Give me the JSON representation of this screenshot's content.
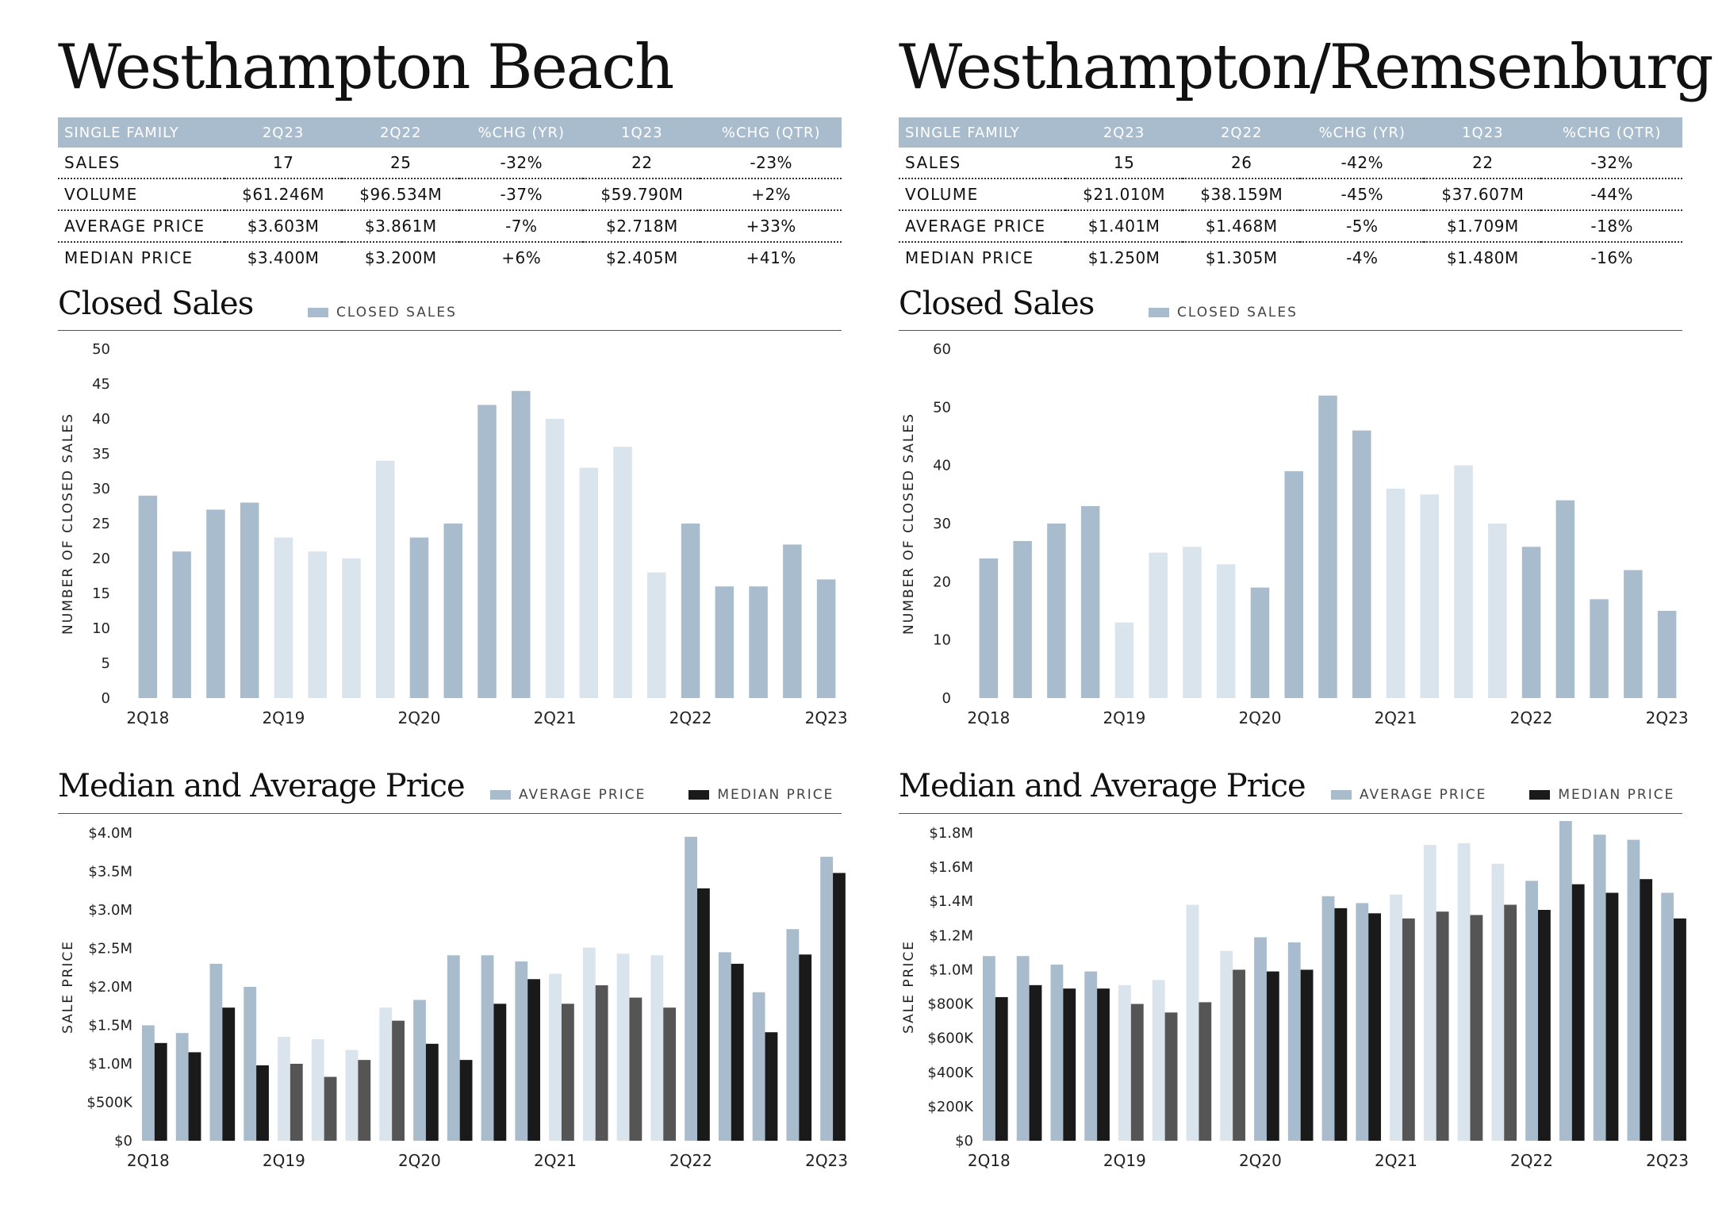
{
  "colors": {
    "header_bg": "#a9bccd",
    "bar_dark": "#a9bccd",
    "bar_light": "#dae4ec",
    "median_black": "#1a1a1a",
    "median_gray": "#555555"
  },
  "panels": [
    {
      "id": "westhampton-beach",
      "title": "Westhampton Beach",
      "table": {
        "headers": [
          "SINGLE FAMILY",
          "2Q23",
          "2Q22",
          "%CHG (YR)",
          "1Q23",
          "%CHG (QTR)"
        ],
        "rows": [
          [
            "SALES",
            "17",
            "25",
            "-32%",
            "22",
            "-23%"
          ],
          [
            "VOLUME",
            "$61.246M",
            "$96.534M",
            "-37%",
            "$59.790M",
            "+2%"
          ],
          [
            "AVERAGE PRICE",
            "$3.603M",
            "$3.861M",
            "-7%",
            "$2.718M",
            "+33%"
          ],
          [
            "MEDIAN PRICE",
            "$3.400M",
            "$3.200M",
            "+6%",
            "$2.405M",
            "+41%"
          ]
        ]
      },
      "closed_sales": {
        "title": "Closed Sales",
        "legend": "CLOSED SALES",
        "chart_data": {
          "type": "bar",
          "ylabel": "NUMBER OF CLOSED SALES",
          "ylim": [
            0,
            50
          ],
          "yticks": [
            "0",
            "5",
            "10",
            "15",
            "20",
            "25",
            "30",
            "35",
            "40",
            "45",
            "50"
          ],
          "x_labels": [
            "2Q18",
            "2Q19",
            "2Q20",
            "2Q21",
            "2Q22",
            "2Q23"
          ],
          "values": [
            29,
            21,
            27,
            28,
            23,
            21,
            20,
            34,
            23,
            25,
            42,
            44,
            40,
            33,
            36,
            18,
            25,
            16,
            16,
            22,
            17
          ]
        }
      },
      "price": {
        "title": "Median and Average Price",
        "legend_avg": "AVERAGE PRICE",
        "legend_median": "MEDIAN PRICE",
        "chart_data": {
          "type": "bar",
          "ylabel": "SALE PRICE",
          "ylim": [
            0,
            4000000
          ],
          "yticks": [
            "$0",
            "$500K",
            "$1.0M",
            "$1.5M",
            "$2.0M",
            "$2.5M",
            "$3.0M",
            "$3.5M",
            "$4.0M"
          ],
          "x_labels": [
            "2Q18",
            "2Q19",
            "2Q20",
            "2Q21",
            "2Q22",
            "2Q23"
          ],
          "series": [
            {
              "name": "AVERAGE PRICE",
              "values": [
                1.5,
                1.4,
                2.3,
                2.0,
                1.35,
                1.32,
                1.18,
                1.73,
                1.83,
                2.41,
                2.41,
                2.33,
                2.17,
                2.51,
                2.43,
                2.41,
                3.95,
                2.45,
                1.93,
                2.75,
                3.69
              ]
            },
            {
              "name": "MEDIAN PRICE",
              "values": [
                1.27,
                1.15,
                1.73,
                0.98,
                1.0,
                0.83,
                1.05,
                1.56,
                1.26,
                1.05,
                1.78,
                2.1,
                1.78,
                2.02,
                1.86,
                1.73,
                3.28,
                2.3,
                1.41,
                2.42,
                3.48
              ]
            }
          ],
          "unit": "millions USD"
        }
      }
    },
    {
      "id": "westhampton-remsenburg",
      "title": "Westhampton/Remsenburg",
      "table": {
        "headers": [
          "SINGLE FAMILY",
          "2Q23",
          "2Q22",
          "%CHG (YR)",
          "1Q23",
          "%CHG (QTR)"
        ],
        "rows": [
          [
            "SALES",
            "15",
            "26",
            "-42%",
            "22",
            "-32%"
          ],
          [
            "VOLUME",
            "$21.010M",
            "$38.159M",
            "-45%",
            "$37.607M",
            "-44%"
          ],
          [
            "AVERAGE PRICE",
            "$1.401M",
            "$1.468M",
            "-5%",
            "$1.709M",
            "-18%"
          ],
          [
            "MEDIAN PRICE",
            "$1.250M",
            "$1.305M",
            "-4%",
            "$1.480M",
            "-16%"
          ]
        ]
      },
      "closed_sales": {
        "title": "Closed Sales",
        "legend": "CLOSED SALES",
        "chart_data": {
          "type": "bar",
          "ylabel": "NUMBER OF CLOSED SALES",
          "ylim": [
            0,
            60
          ],
          "yticks": [
            "0",
            "10",
            "20",
            "30",
            "40",
            "50",
            "60"
          ],
          "x_labels": [
            "2Q18",
            "2Q19",
            "2Q20",
            "2Q21",
            "2Q22",
            "2Q23"
          ],
          "values": [
            24,
            27,
            30,
            33,
            13,
            25,
            26,
            23,
            19,
            39,
            52,
            46,
            36,
            35,
            40,
            30,
            26,
            34,
            17,
            22,
            15
          ]
        }
      },
      "price": {
        "title": "Median and Average Price",
        "legend_avg": "AVERAGE PRICE",
        "legend_median": "MEDIAN PRICE",
        "chart_data": {
          "type": "bar",
          "ylabel": "SALE PRICE",
          "ylim": [
            0,
            1800000
          ],
          "yticks": [
            "$0",
            "$200K",
            "$400K",
            "$600K",
            "$800K",
            "$1.0M",
            "$1.2M",
            "$1.4M",
            "$1.6M",
            "$1.8M"
          ],
          "x_labels": [
            "2Q18",
            "2Q19",
            "2Q20",
            "2Q21",
            "2Q22",
            "2Q23"
          ],
          "series": [
            {
              "name": "AVERAGE PRICE",
              "values": [
                1.08,
                1.08,
                1.03,
                0.99,
                0.91,
                0.94,
                1.38,
                1.11,
                1.19,
                1.16,
                1.43,
                1.39,
                1.44,
                1.73,
                1.74,
                1.62,
                1.52,
                1.87,
                1.79,
                1.76,
                1.45
              ]
            },
            {
              "name": "MEDIAN PRICE",
              "values": [
                0.84,
                0.91,
                0.89,
                0.89,
                0.8,
                0.75,
                0.81,
                1.0,
                0.99,
                1.0,
                1.36,
                1.33,
                1.3,
                1.34,
                1.32,
                1.38,
                1.35,
                1.5,
                1.45,
                1.53,
                1.3
              ]
            }
          ],
          "unit": "millions USD"
        }
      }
    }
  ]
}
